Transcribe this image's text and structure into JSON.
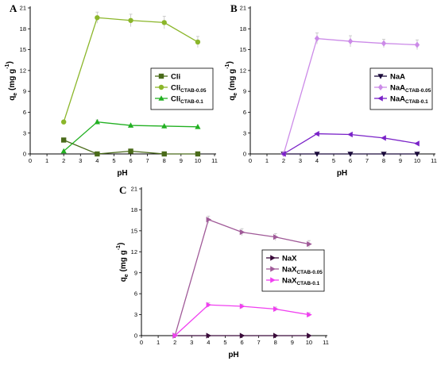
{
  "chart_data": [
    {
      "type": "line",
      "panel_label": "A",
      "xlabel": "pH",
      "ylabel": {
        "main": "q",
        "sub": "e",
        "rest": " (mg g",
        "sup": "-1",
        "close": ")"
      },
      "xlim": [
        0,
        11
      ],
      "ylim": [
        0,
        21
      ],
      "xticks": [
        "0",
        "1",
        "2",
        "3",
        "4",
        "5",
        "6",
        "7",
        "8",
        "9",
        "10",
        "11"
      ],
      "yticks": [
        "0",
        "3",
        "6",
        "9",
        "12",
        "15",
        "18",
        "21"
      ],
      "grid": false,
      "legend_position": "right-center",
      "x": [
        2,
        4,
        6,
        8,
        10
      ],
      "series": [
        {
          "name": "Cli",
          "name_sub": "",
          "marker": "square",
          "color": "#4a6b1a",
          "values": [
            2.0,
            0.0,
            0.4,
            0.0,
            0.0
          ],
          "errors": [
            0,
            0,
            0,
            0,
            0
          ]
        },
        {
          "name": "Cli",
          "name_sub": "CTAB-0.05",
          "marker": "circle",
          "color": "#8bb62a",
          "values": [
            4.6,
            19.6,
            19.2,
            18.9,
            16.1
          ],
          "errors": [
            0,
            0.8,
            0.9,
            0.9,
            0.8
          ]
        },
        {
          "name": "Cli",
          "name_sub": "CTAB-0.1",
          "marker": "triangle",
          "color": "#22b022",
          "values": [
            0.4,
            4.6,
            4.1,
            4.0,
            3.9
          ],
          "errors": [
            0,
            0.3,
            0,
            0,
            0
          ]
        }
      ]
    },
    {
      "type": "line",
      "panel_label": "B",
      "xlabel": "pH",
      "ylabel": {
        "main": "q",
        "sub": "e",
        "rest": " (mg g",
        "sup": "-1",
        "close": ")"
      },
      "xlim": [
        0,
        11
      ],
      "ylim": [
        0,
        21
      ],
      "xticks": [
        "0",
        "1",
        "2",
        "3",
        "4",
        "5",
        "6",
        "7",
        "8",
        "9",
        "10",
        "11"
      ],
      "yticks": [
        "0",
        "3",
        "6",
        "9",
        "12",
        "15",
        "18",
        "21"
      ],
      "grid": false,
      "legend_position": "right-center",
      "x": [
        2,
        4,
        6,
        8,
        10
      ],
      "series": [
        {
          "name": "NaA",
          "name_sub": "",
          "marker": "triangle-down",
          "color": "#1a0a3a",
          "values": [
            0.0,
            0.0,
            0.0,
            0.0,
            0.0
          ],
          "errors": [
            0,
            0,
            0,
            0,
            0
          ]
        },
        {
          "name": "NaA",
          "name_sub": "CTAB-0.05",
          "marker": "diamond",
          "color": "#cc8be8",
          "values": [
            0.0,
            16.6,
            16.2,
            15.9,
            15.7
          ],
          "errors": [
            0,
            0.8,
            0.8,
            0.6,
            0.7
          ]
        },
        {
          "name": "NaA",
          "name_sub": "CTAB-0.1",
          "marker": "triangle-left",
          "color": "#7a22c8",
          "values": [
            0.0,
            2.9,
            2.8,
            2.3,
            1.5
          ],
          "errors": [
            0,
            0,
            0,
            0,
            0
          ]
        }
      ]
    },
    {
      "type": "line",
      "panel_label": "C",
      "xlabel": "pH",
      "ylabel": {
        "main": "q",
        "sub": "e",
        "rest": " (mg g",
        "sup": "-1",
        "close": ")"
      },
      "xlim": [
        0,
        11
      ],
      "ylim": [
        0,
        21
      ],
      "xticks": [
        "0",
        "1",
        "2",
        "3",
        "4",
        "5",
        "6",
        "7",
        "8",
        "9",
        "10",
        "11"
      ],
      "yticks": [
        "0",
        "3",
        "6",
        "9",
        "12",
        "15",
        "18",
        "21"
      ],
      "grid": false,
      "legend_position": "right-center",
      "x": [
        2,
        4,
        6,
        8,
        10
      ],
      "series": [
        {
          "name": "NaX",
          "name_sub": "",
          "marker": "triangle-right",
          "color": "#3a0a3a",
          "values": [
            0.0,
            0.0,
            0.0,
            0.0,
            0.0
          ],
          "errors": [
            0,
            0,
            0,
            0,
            0
          ]
        },
        {
          "name": "NaX",
          "name_sub": "CTAB-0.05",
          "marker": "triangle-right",
          "color": "#a05a98",
          "values": [
            0.0,
            16.6,
            14.8,
            14.1,
            13.1
          ],
          "errors": [
            0,
            0.5,
            0.5,
            0.5,
            0.5
          ]
        },
        {
          "name": "NaX",
          "name_sub": "CTAB-0.1",
          "marker": "triangle-right",
          "color": "#f040f0",
          "values": [
            0.0,
            4.4,
            4.2,
            3.8,
            3.0
          ],
          "errors": [
            0,
            0.3,
            0.3,
            0.3,
            0.3
          ]
        }
      ]
    }
  ]
}
